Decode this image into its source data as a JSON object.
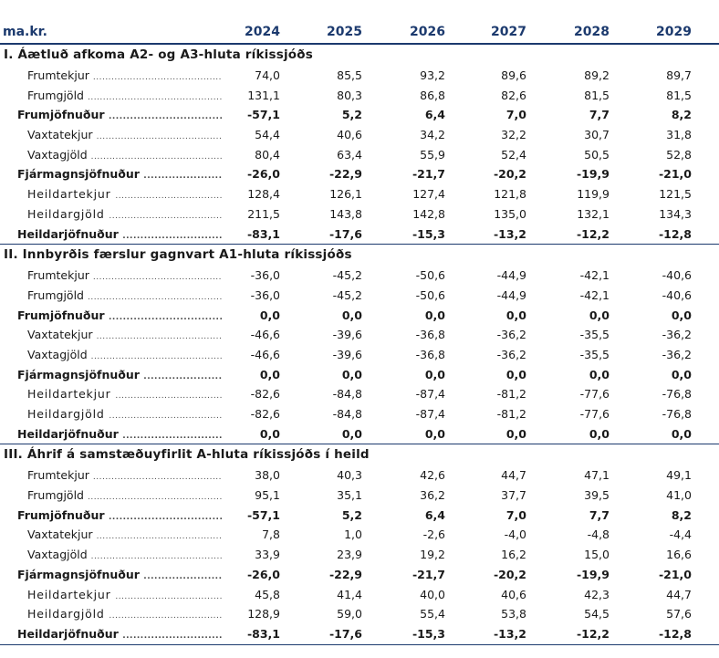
{
  "header": {
    "unit": "ma.kr.",
    "years": [
      "2024",
      "2025",
      "2026",
      "2027",
      "2028",
      "2029"
    ]
  },
  "dots": "..................................................................................................",
  "sections": [
    {
      "title": "I. Áætluð afkoma A2- og A3-hluta ríkissjóðs",
      "rows": [
        {
          "label": "Frumtekjur",
          "style": "ind",
          "values": [
            "74,0",
            "85,5",
            "93,2",
            "89,6",
            "89,2",
            "89,7"
          ]
        },
        {
          "label": "Frumgjöld",
          "style": "ind",
          "values": [
            "131,1",
            "80,3",
            "86,8",
            "82,6",
            "81,5",
            "81,5"
          ]
        },
        {
          "label": "Frumjöfnuður",
          "style": "sub",
          "values": [
            "-57,1",
            "5,2",
            "6,4",
            "7,0",
            "7,7",
            "8,2"
          ]
        },
        {
          "label": "Vaxtatekjur",
          "style": "ind",
          "values": [
            "54,4",
            "40,6",
            "34,2",
            "32,2",
            "30,7",
            "31,8"
          ]
        },
        {
          "label": "Vaxtagjöld",
          "style": "ind",
          "values": [
            "80,4",
            "63,4",
            "55,9",
            "52,4",
            "50,5",
            "52,8"
          ]
        },
        {
          "label": "Fjármagnsjöfnuður",
          "style": "sub",
          "values": [
            "-26,0",
            "-22,9",
            "-21,7",
            "-20,2",
            "-19,9",
            "-21,0"
          ]
        },
        {
          "label": "Heildartekjur",
          "style": "ind2",
          "values": [
            "128,4",
            "126,1",
            "127,4",
            "121,8",
            "119,9",
            "121,5"
          ]
        },
        {
          "label": "Heildargjöld",
          "style": "ind2",
          "values": [
            "211,5",
            "143,8",
            "142,8",
            "135,0",
            "132,1",
            "134,3"
          ]
        },
        {
          "label": "Heildarjöfnuður",
          "style": "sub",
          "values": [
            "-83,1",
            "-17,6",
            "-15,3",
            "-13,2",
            "-12,2",
            "-12,8"
          ]
        }
      ]
    },
    {
      "title": "II. Innbyrðis færslur gagnvart A1-hluta ríkissjóðs",
      "rows": [
        {
          "label": "Frumtekjur",
          "style": "ind",
          "values": [
            "-36,0",
            "-45,2",
            "-50,6",
            "-44,9",
            "-42,1",
            "-40,6"
          ]
        },
        {
          "label": "Frumgjöld",
          "style": "ind",
          "values": [
            "-36,0",
            "-45,2",
            "-50,6",
            "-44,9",
            "-42,1",
            "-40,6"
          ]
        },
        {
          "label": "Frumjöfnuður",
          "style": "sub",
          "values": [
            "0,0",
            "0,0",
            "0,0",
            "0,0",
            "0,0",
            "0,0"
          ]
        },
        {
          "label": "Vaxtatekjur",
          "style": "ind",
          "values": [
            "-46,6",
            "-39,6",
            "-36,8",
            "-36,2",
            "-35,5",
            "-36,2"
          ]
        },
        {
          "label": "Vaxtagjöld",
          "style": "ind",
          "values": [
            "-46,6",
            "-39,6",
            "-36,8",
            "-36,2",
            "-35,5",
            "-36,2"
          ]
        },
        {
          "label": "Fjármagnsjöfnuður",
          "style": "sub",
          "values": [
            "0,0",
            "0,0",
            "0,0",
            "0,0",
            "0,0",
            "0,0"
          ]
        },
        {
          "label": "Heildartekjur",
          "style": "ind2",
          "values": [
            "-82,6",
            "-84,8",
            "-87,4",
            "-81,2",
            "-77,6",
            "-76,8"
          ]
        },
        {
          "label": "Heildargjöld",
          "style": "ind2",
          "values": [
            "-82,6",
            "-84,8",
            "-87,4",
            "-81,2",
            "-77,6",
            "-76,8"
          ]
        },
        {
          "label": "Heildarjöfnuður",
          "style": "sub",
          "values": [
            "0,0",
            "0,0",
            "0,0",
            "0,0",
            "0,0",
            "0,0"
          ]
        }
      ]
    },
    {
      "title": "III. Áhrif á samstæðuyfirlit A-hluta ríkissjóðs í heild",
      "rows": [
        {
          "label": "Frumtekjur",
          "style": "ind",
          "values": [
            "38,0",
            "40,3",
            "42,6",
            "44,7",
            "47,1",
            "49,1"
          ]
        },
        {
          "label": "Frumgjöld",
          "style": "ind",
          "values": [
            "95,1",
            "35,1",
            "36,2",
            "37,7",
            "39,5",
            "41,0"
          ]
        },
        {
          "label": "Frumjöfnuður",
          "style": "sub",
          "values": [
            "-57,1",
            "5,2",
            "6,4",
            "7,0",
            "7,7",
            "8,2"
          ]
        },
        {
          "label": "Vaxtatekjur",
          "style": "ind",
          "values": [
            "7,8",
            "1,0",
            "-2,6",
            "-4,0",
            "-4,8",
            "-4,4"
          ]
        },
        {
          "label": "Vaxtagjöld",
          "style": "ind",
          "values": [
            "33,9",
            "23,9",
            "19,2",
            "16,2",
            "15,0",
            "16,6"
          ]
        },
        {
          "label": "Fjármagnsjöfnuður",
          "style": "sub",
          "values": [
            "-26,0",
            "-22,9",
            "-21,7",
            "-20,2",
            "-19,9",
            "-21,0"
          ]
        },
        {
          "label": "Heildartekjur",
          "style": "ind2",
          "values": [
            "45,8",
            "41,4",
            "40,0",
            "40,6",
            "42,3",
            "44,7"
          ]
        },
        {
          "label": "Heildargjöld",
          "style": "ind2",
          "values": [
            "128,9",
            "59,0",
            "55,4",
            "53,8",
            "54,5",
            "57,6"
          ]
        },
        {
          "label": "Heildarjöfnuður",
          "style": "sub",
          "values": [
            "-83,1",
            "-17,6",
            "-15,3",
            "-13,2",
            "-12,2",
            "-12,8"
          ]
        }
      ]
    }
  ]
}
